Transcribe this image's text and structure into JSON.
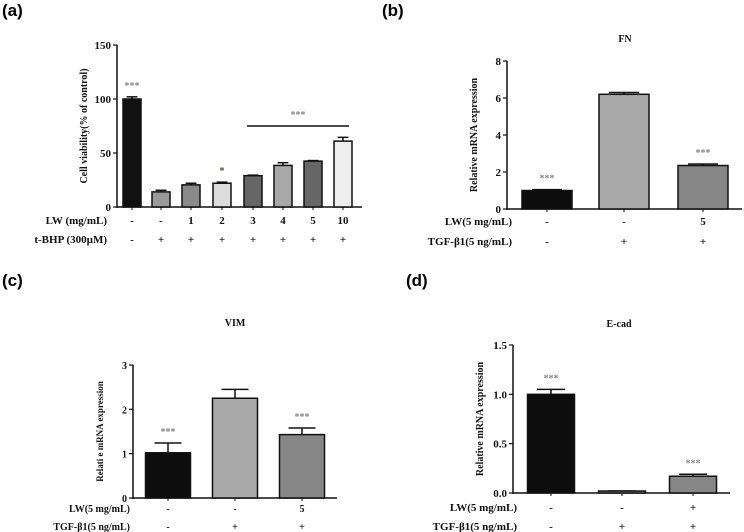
{
  "chart_data": [
    {
      "panel": "(a)",
      "type": "bar",
      "title": "",
      "ylabel": "Cell viability(% of control)",
      "ylim": [
        0,
        150
      ],
      "yticks": [
        "0",
        "50",
        "100",
        "150"
      ],
      "row_labels": [
        "LW (mg/mL)",
        "t-BHP (300µM)"
      ],
      "rows": [
        [
          "-",
          "-",
          "1",
          "2",
          "3",
          "4",
          "5",
          "10"
        ],
        [
          "-",
          "+",
          "+",
          "+",
          "+",
          "+",
          "+",
          "+"
        ]
      ],
      "values": [
        100,
        14,
        20.5,
        22,
        29,
        38.5,
        42.5,
        61
      ],
      "errors": [
        2,
        1.5,
        1.5,
        1,
        0.5,
        2.5,
        0.5,
        3.5
      ],
      "colors": [
        "#111111",
        "#9a9a9a",
        "#8a8a8a",
        "#dcdcdc",
        "#666666",
        "#a8a8a8",
        "#666666",
        "#eeeeee"
      ],
      "significance": [
        {
          "bar": 0,
          "label": "***"
        },
        {
          "bar": 3,
          "label": "*"
        }
      ],
      "bracket": {
        "from": 4,
        "to": 7,
        "label": "***"
      }
    },
    {
      "panel": "(b)",
      "type": "bar",
      "title": "FN",
      "ylabel": "Relative mRNA expression",
      "ylim": [
        0,
        8
      ],
      "yticks": [
        "0",
        "2",
        "4",
        "6",
        "8"
      ],
      "row_labels": [
        "LW(5 mg/mL)",
        "TGF-β1(5 ng/mL)"
      ],
      "rows": [
        [
          "-",
          "-",
          "5"
        ],
        [
          "-",
          "+",
          "+"
        ]
      ],
      "values": [
        1.0,
        6.2,
        2.35
      ],
      "errors": [
        0.05,
        0.1,
        0.08
      ],
      "colors": [
        "#0d0d0d",
        "#a9a9a9",
        "#868686"
      ],
      "significance": [
        {
          "bar": 0,
          "label": "***"
        },
        {
          "bar": 2,
          "label": "***"
        }
      ]
    },
    {
      "panel": "(c)",
      "type": "bar",
      "title": "VIM",
      "ylabel": "Relati e mRNA expression",
      "ylim": [
        0,
        3
      ],
      "yticks": [
        "0",
        "1",
        "2",
        "3"
      ],
      "row_labels": [
        "LW(5 mg/mL)",
        "TGF-β1(5 ng/mL)"
      ],
      "rows": [
        [
          "-",
          "-",
          "5"
        ],
        [
          "-",
          "+",
          "+"
        ]
      ],
      "values": [
        1.02,
        2.25,
        1.43
      ],
      "errors": [
        0.22,
        0.2,
        0.15
      ],
      "colors": [
        "#0d0d0d",
        "#a9a9a9",
        "#868686"
      ],
      "significance": [
        {
          "bar": 0,
          "label": "***"
        },
        {
          "bar": 2,
          "label": "***"
        }
      ]
    },
    {
      "panel": "(d)",
      "type": "bar",
      "title": "E-cad",
      "ylabel": "Relative mRNA expression",
      "ylim": [
        0,
        1.5
      ],
      "yticks": [
        "0.0",
        "0.5",
        "1.0",
        "1.5"
      ],
      "row_labels": [
        "LW(5 mg/mL)",
        "TGF-β1(5 ng/mL)"
      ],
      "rows": [
        [
          "-",
          "-",
          "+"
        ],
        [
          "-",
          "+",
          "+"
        ]
      ],
      "values": [
        1.0,
        0.02,
        0.17
      ],
      "errors": [
        0.05,
        0.0,
        0.02
      ],
      "colors": [
        "#0d0d0d",
        "#a9a9a9",
        "#868686"
      ],
      "significance": [
        {
          "bar": 0,
          "label": "***"
        },
        {
          "bar": 2,
          "label": "***"
        }
      ]
    }
  ]
}
